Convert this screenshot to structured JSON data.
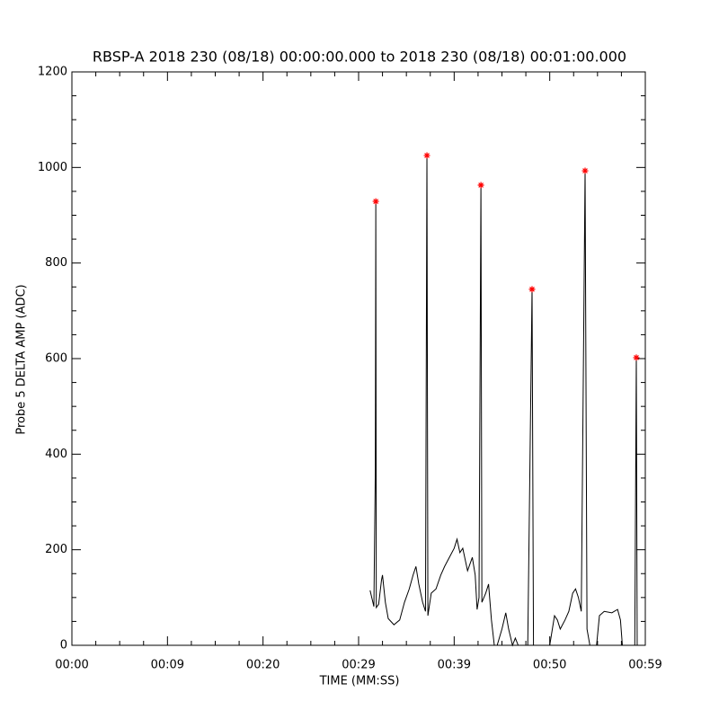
{
  "chart_data": {
    "type": "line",
    "title": "RBSP-A 2018 230 (08/18) 00:00:00.000 to 2018 230 (08/18) 00:01:00.000",
    "xlabel": "TIME (MM:SS)",
    "ylabel": "Probe 5 DELTA AMP (ADC)",
    "xlim": [
      0,
      60
    ],
    "xticks": [
      {
        "value": 0,
        "label": "00:00"
      },
      {
        "value": 10,
        "label": "00:09"
      },
      {
        "value": 20,
        "label": "00:20"
      },
      {
        "value": 30,
        "label": "00:29"
      },
      {
        "value": 40,
        "label": "00:39"
      },
      {
        "value": 50,
        "label": "00:50"
      },
      {
        "value": 60,
        "label": "00:59"
      }
    ],
    "ylim": [
      0,
      1200
    ],
    "yticks": [
      0,
      200,
      400,
      600,
      800,
      1000,
      1200
    ],
    "series": [
      {
        "color": "#000000",
        "x": [
          31.2,
          31.6,
          31.75,
          31.8,
          31.85,
          32.1,
          32.4,
          32.5,
          32.8,
          33.1,
          33.7,
          34.3,
          34.8,
          35.3,
          35.7,
          36.0,
          36.3,
          36.7,
          37.0,
          37.15,
          37.25,
          37.6,
          38.1,
          38.6,
          39.0,
          39.5,
          40.0,
          40.3,
          40.6,
          40.9,
          41.4,
          41.9,
          42.2,
          42.4,
          42.6,
          42.8,
          42.9,
          43.3,
          43.6,
          43.9,
          44.2,
          44.5,
          45.0,
          45.4,
          45.7,
          46.1,
          46.4,
          46.7,
          47.2,
          47.7,
          48.15,
          48.3,
          48.9,
          49.4,
          50.0,
          50.5,
          50.8,
          51.1,
          51.6,
          52.0,
          52.4,
          52.7,
          53.0,
          53.3,
          53.7,
          53.9,
          54.2,
          54.6,
          54.9,
          55.2,
          55.7,
          56.5,
          57.1,
          57.4,
          57.6,
          58.3,
          58.9,
          59.06,
          59.15,
          59.4
        ],
        "values": [
          115,
          81,
          372,
          929,
          79,
          86,
          137,
          147,
          90,
          56,
          43,
          53,
          90,
          118,
          147,
          165,
          128,
          90,
          71,
          1025,
          62,
          109,
          118,
          147,
          165,
          184,
          203,
          222,
          194,
          203,
          156,
          184,
          147,
          75,
          100,
          963,
          90,
          109,
          128,
          53,
          0,
          0,
          34,
          68,
          34,
          0,
          15,
          0,
          0,
          0,
          745,
          0,
          0,
          0,
          0,
          62,
          53,
          34,
          53,
          71,
          109,
          118,
          100,
          71,
          993,
          34,
          0,
          0,
          0,
          62,
          71,
          68,
          75,
          53,
          0,
          0,
          0,
          602,
          0,
          0
        ]
      },
      {
        "color": "#ff0000",
        "marker": "asterisk",
        "x": [
          31.8,
          37.15,
          42.8,
          48.15,
          53.7,
          59.06
        ],
        "values": [
          929,
          1025,
          963,
          745,
          993,
          602
        ]
      }
    ]
  }
}
